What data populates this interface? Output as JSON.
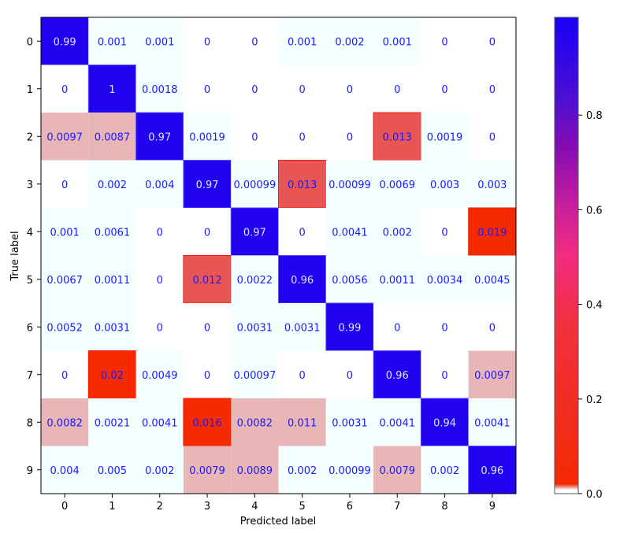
{
  "chart_data": {
    "type": "heatmap",
    "title": "",
    "xlabel": "Predicted label",
    "ylabel": "True label",
    "x_categories": [
      "0",
      "1",
      "2",
      "3",
      "4",
      "5",
      "6",
      "7",
      "8",
      "9"
    ],
    "y_categories": [
      "0",
      "1",
      "2",
      "3",
      "4",
      "5",
      "6",
      "7",
      "8",
      "9"
    ],
    "values": [
      [
        "0.99",
        "0.001",
        "0.001",
        "0",
        "0",
        "0.001",
        "0.002",
        "0.001",
        "0",
        "0"
      ],
      [
        "0",
        "1",
        "0.0018",
        "0",
        "0",
        "0",
        "0",
        "0",
        "0",
        "0"
      ],
      [
        "0.0097",
        "0.0087",
        "0.97",
        "0.0019",
        "0",
        "0",
        "0",
        "0.013",
        "0.0019",
        "0"
      ],
      [
        "0",
        "0.002",
        "0.004",
        "0.97",
        "0.00099",
        "0.013",
        "0.00099",
        "0.0069",
        "0.003",
        "0.003"
      ],
      [
        "0.001",
        "0.0061",
        "0",
        "0",
        "0.97",
        "0",
        "0.0041",
        "0.002",
        "0",
        "0.019"
      ],
      [
        "0.0067",
        "0.0011",
        "0",
        "0.012",
        "0.0022",
        "0.96",
        "0.0056",
        "0.0011",
        "0.0034",
        "0.0045"
      ],
      [
        "0.0052",
        "0.0031",
        "0",
        "0",
        "0.0031",
        "0.0031",
        "0.99",
        "0",
        "0",
        "0"
      ],
      [
        "0",
        "0.02",
        "0.0049",
        "0",
        "0.00097",
        "0",
        "0",
        "0.96",
        "0",
        "0.0097"
      ],
      [
        "0.0082",
        "0.0021",
        "0.0041",
        "0.016",
        "0.0082",
        "0.011",
        "0.0031",
        "0.0041",
        "0.94",
        "0.0041"
      ],
      [
        "0.004",
        "0.005",
        "0.002",
        "0.0079",
        "0.0089",
        "0.002",
        "0.00099",
        "0.0079",
        "0.002",
        "0.96"
      ]
    ],
    "colorbar": {
      "ticks": [
        "0.0",
        "0.2",
        "0.4",
        "0.6",
        "0.8"
      ],
      "range": [
        0,
        1
      ]
    },
    "colors": {
      "zero": "#ffffff",
      "tiny": "#f4ffff",
      "small": "#e8b6b6",
      "medium": "#e85555",
      "large_error": "#f52a00",
      "high": "#2200f0",
      "text": "#1a1aff",
      "text_on_high": "#e6e0ff"
    }
  }
}
